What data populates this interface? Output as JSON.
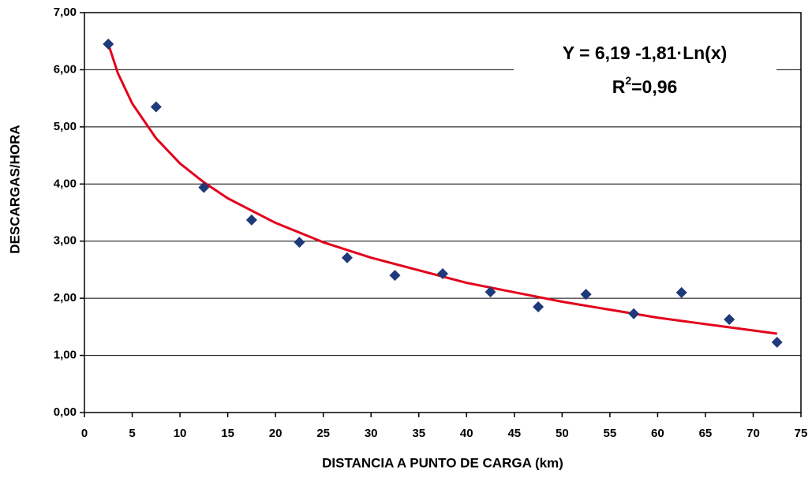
{
  "chart_data": {
    "type": "scatter",
    "xlabel": "DISTANCIA A PUNTO DE CARGA (km)",
    "ylabel": "DESCARGAS/HORA",
    "xlim": [
      0,
      75
    ],
    "xticks": [
      0,
      5,
      10,
      15,
      20,
      25,
      30,
      35,
      40,
      45,
      50,
      55,
      60,
      65,
      70,
      75
    ],
    "ylim": [
      0,
      7
    ],
    "yticks": [
      {
        "value": 0,
        "label": "0,00"
      },
      {
        "value": 1,
        "label": "1,00"
      },
      {
        "value": 2,
        "label": "2,00"
      },
      {
        "value": 3,
        "label": "3,00"
      },
      {
        "value": 4,
        "label": "4,00"
      },
      {
        "value": 5,
        "label": "5,00"
      },
      {
        "value": 6,
        "label": "6,00"
      },
      {
        "value": 7,
        "label": "7,00"
      }
    ],
    "grid": true,
    "series": [
      {
        "type": "scatter",
        "color": "#1f3a7a",
        "x": [
          2.5,
          7.5,
          12.5,
          17.5,
          22.5,
          27.5,
          32.5,
          37.5,
          42.5,
          47.5,
          52.5,
          57.5,
          62.5,
          67.5,
          72.5
        ],
        "values": [
          6.45,
          5.35,
          3.94,
          3.37,
          2.98,
          2.71,
          2.4,
          2.43,
          2.11,
          1.85,
          2.07,
          1.73,
          2.1,
          1.63,
          1.23
        ]
      },
      {
        "type": "line",
        "color": "#e3001b",
        "x": [
          2.5,
          3.5,
          5,
          7.5,
          10,
          12.5,
          15,
          20,
          25,
          30,
          40,
          50,
          60,
          72.5
        ],
        "values": [
          6.45,
          5.94,
          5.41,
          4.8,
          4.36,
          4.03,
          3.75,
          3.32,
          2.98,
          2.71,
          2.27,
          1.94,
          1.66,
          1.38
        ]
      }
    ],
    "annotation": {
      "equation": "Y = 6,19 -1,81·Ln(x)",
      "r2": {
        "symbol": "R",
        "exponent": "2",
        "value": "=0,96"
      }
    }
  }
}
